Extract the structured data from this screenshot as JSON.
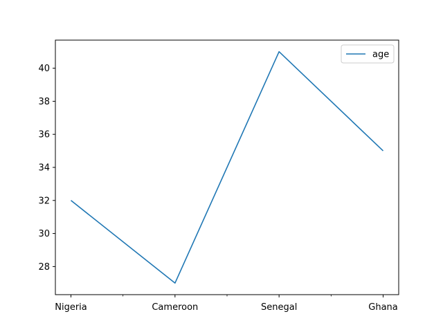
{
  "chart_data": {
    "type": "line",
    "categories": [
      "Nigeria",
      "Cameroon",
      "Senegal",
      "Ghana"
    ],
    "series": [
      {
        "name": "age",
        "values": [
          32,
          27,
          41,
          35
        ],
        "color": "#1f77b4"
      }
    ],
    "ylim": [
      26.3,
      41.7
    ],
    "yticks": [
      28,
      30,
      32,
      34,
      36,
      38,
      40
    ],
    "title": "",
    "xlabel": "",
    "ylabel": "",
    "grid": false,
    "legend": "top-right"
  }
}
